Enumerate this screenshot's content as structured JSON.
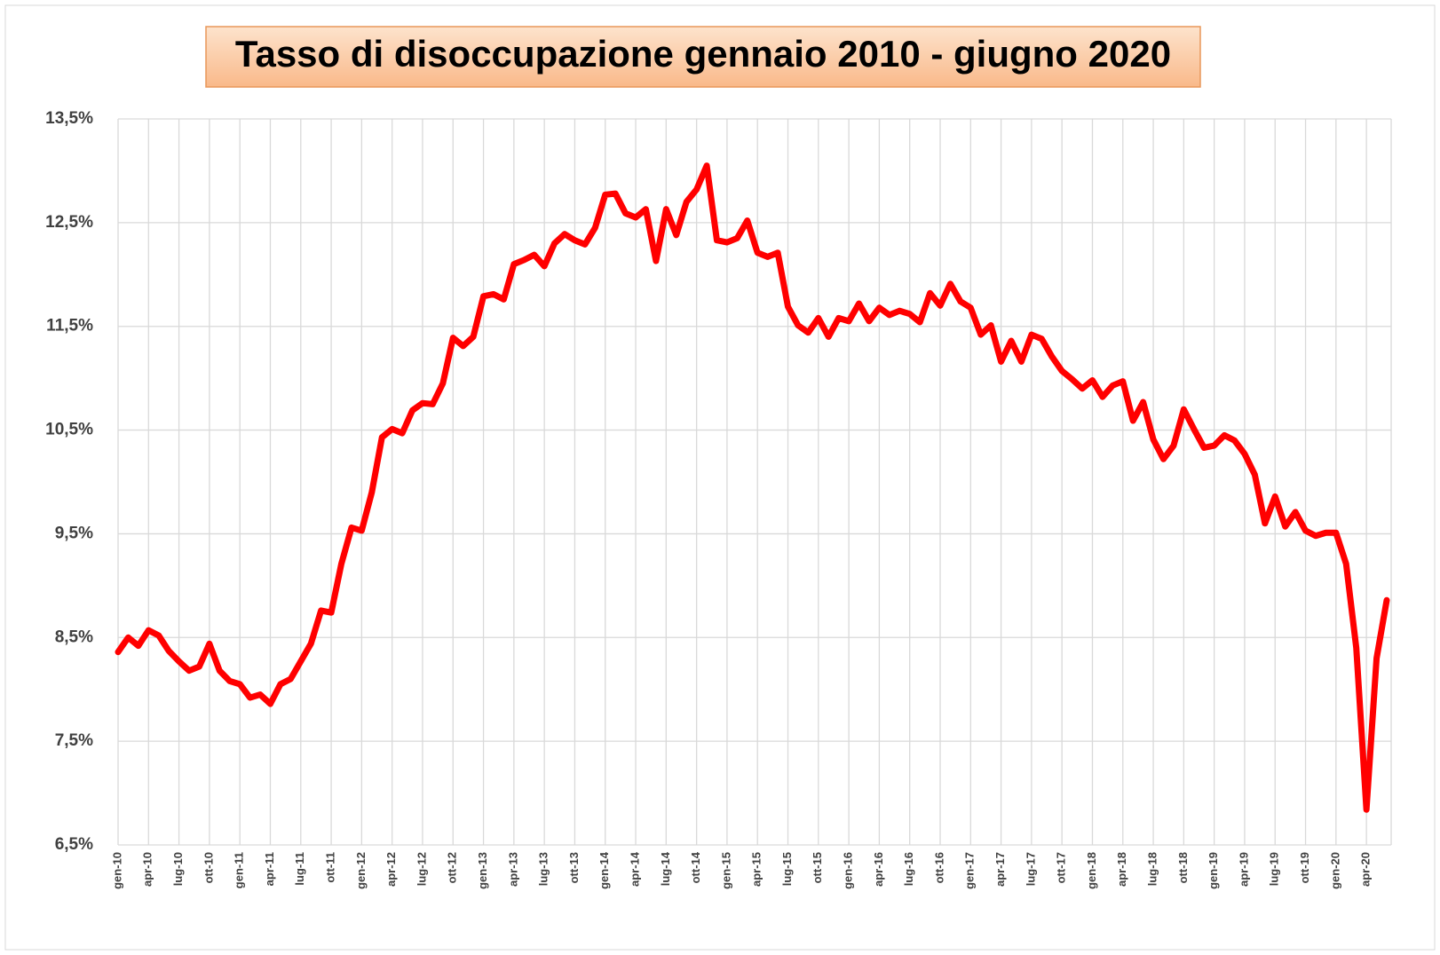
{
  "chart_data": {
    "type": "line",
    "title": "Tasso di disoccupazione gennaio 2010 - giugno 2020",
    "categories": [
      "gen-10",
      null,
      null,
      "apr-10",
      null,
      null,
      "lug-10",
      null,
      null,
      "ott-10",
      null,
      null,
      "gen-11",
      null,
      null,
      "apr-11",
      null,
      null,
      "lug-11",
      null,
      null,
      "ott-11",
      null,
      null,
      "gen-12",
      null,
      null,
      "apr-12",
      null,
      null,
      "lug-12",
      null,
      null,
      "ott-12",
      null,
      null,
      "gen-13",
      null,
      null,
      "apr-13",
      null,
      null,
      "lug-13",
      null,
      null,
      "ott-13",
      null,
      null,
      "gen-14",
      null,
      null,
      "apr-14",
      null,
      null,
      "lug-14",
      null,
      null,
      "ott-14",
      null,
      null,
      "gen-15",
      null,
      null,
      "apr-15",
      null,
      null,
      "lug-15",
      null,
      null,
      "ott-15",
      null,
      null,
      "gen-16",
      null,
      null,
      "apr-16",
      null,
      null,
      "lug-16",
      null,
      null,
      "ott-16",
      null,
      null,
      "gen-17",
      null,
      null,
      "apr-17",
      null,
      null,
      "lug-17",
      null,
      null,
      "ott-17",
      null,
      null,
      "gen-18",
      null,
      null,
      "apr-18",
      null,
      null,
      "lug-18",
      null,
      null,
      "ott-18",
      null,
      null,
      "gen-19",
      null,
      null,
      "apr-19",
      null,
      null,
      "lug-19",
      null,
      null,
      "ott-19",
      null,
      null,
      "gen-20",
      null,
      null,
      "apr-20",
      null,
      null
    ],
    "values": [
      8.36,
      8.5,
      8.42,
      8.57,
      8.52,
      8.37,
      8.27,
      8.18,
      8.22,
      8.44,
      8.18,
      8.08,
      8.05,
      7.92,
      7.95,
      7.86,
      8.05,
      8.1,
      8.27,
      8.44,
      8.76,
      8.74,
      9.21,
      9.56,
      9.53,
      9.9,
      10.43,
      10.51,
      10.47,
      10.69,
      10.76,
      10.75,
      10.95,
      11.39,
      11.31,
      11.4,
      11.79,
      11.81,
      11.76,
      12.1,
      12.14,
      12.19,
      12.08,
      12.3,
      12.39,
      12.33,
      12.29,
      12.45,
      12.77,
      12.78,
      12.59,
      12.55,
      12.63,
      12.13,
      12.63,
      12.38,
      12.7,
      12.82,
      13.05,
      12.33,
      12.31,
      12.35,
      12.52,
      12.21,
      12.17,
      12.21,
      11.69,
      11.51,
      11.44,
      11.58,
      11.4,
      11.58,
      11.55,
      11.72,
      11.55,
      11.68,
      11.61,
      11.65,
      11.62,
      11.54,
      11.82,
      11.7,
      11.91,
      11.74,
      11.68,
      11.42,
      11.51,
      11.16,
      11.36,
      11.16,
      11.42,
      11.38,
      11.21,
      11.07,
      10.99,
      10.9,
      10.98,
      10.82,
      10.93,
      10.97,
      10.59,
      10.77,
      10.41,
      10.22,
      10.35,
      10.7,
      10.51,
      10.33,
      10.35,
      10.45,
      10.4,
      10.27,
      10.07,
      9.6,
      9.86,
      9.57,
      9.71,
      9.53,
      9.48,
      9.51,
      9.51,
      9.21,
      8.4,
      6.84,
      8.3,
      8.86
    ],
    "color": "#ff0000",
    "ylim": [
      6.5,
      13.5
    ],
    "yticks": [
      {
        "value": 6.5,
        "label": "6,5%"
      },
      {
        "value": 7.5,
        "label": "7,5%"
      },
      {
        "value": 8.5,
        "label": "8,5%"
      },
      {
        "value": 9.5,
        "label": "9,5%"
      },
      {
        "value": 10.5,
        "label": "10,5%"
      },
      {
        "value": 11.5,
        "label": "11,5%"
      },
      {
        "value": 12.5,
        "label": "12,5%"
      },
      {
        "value": 13.5,
        "label": "13,5%"
      }
    ],
    "grid": true
  }
}
